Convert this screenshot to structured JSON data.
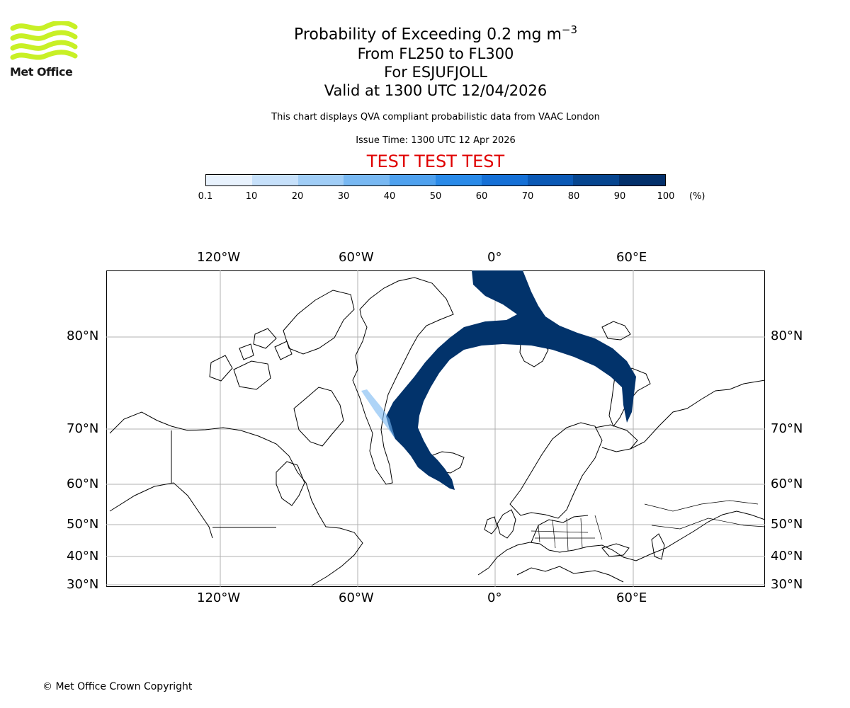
{
  "logo": {
    "text": "Met Office",
    "color": "#c8f026"
  },
  "title": {
    "main": "Probability of Exceeding 0.2 mg m",
    "main_sup": "−3",
    "levels": "From FL250 to FL300",
    "volcano": "For ESJUFJOLL",
    "valid": "Valid at 1300 UTC 12/04/2026",
    "description": "This chart displays QVA compliant probabilistic data from VAAC London",
    "issue": "Issue Time: 1300 UTC 12 Apr 2026",
    "test_banner": "TEST TEST TEST"
  },
  "colorbar": {
    "ticks": [
      "0.1",
      "10",
      "20",
      "30",
      "40",
      "50",
      "60",
      "70",
      "80",
      "90",
      "100"
    ],
    "unit": "(%)",
    "colors": [
      "#e8f2fd",
      "#c6e0fa",
      "#a0cdf6",
      "#78b8f2",
      "#4fa1ee",
      "#2a8ae8",
      "#1570d6",
      "#0b59b5",
      "#06458f",
      "#03306b"
    ]
  },
  "map": {
    "lon_labels": [
      "120°W",
      "60°W",
      "0°",
      "60°E"
    ],
    "lat_labels": [
      "80°N",
      "70°N",
      "60°N",
      "50°N",
      "40°N",
      "30°N"
    ],
    "plume_color": "#02336b"
  },
  "footer": {
    "copyright": "© Met Office Crown Copyright"
  }
}
